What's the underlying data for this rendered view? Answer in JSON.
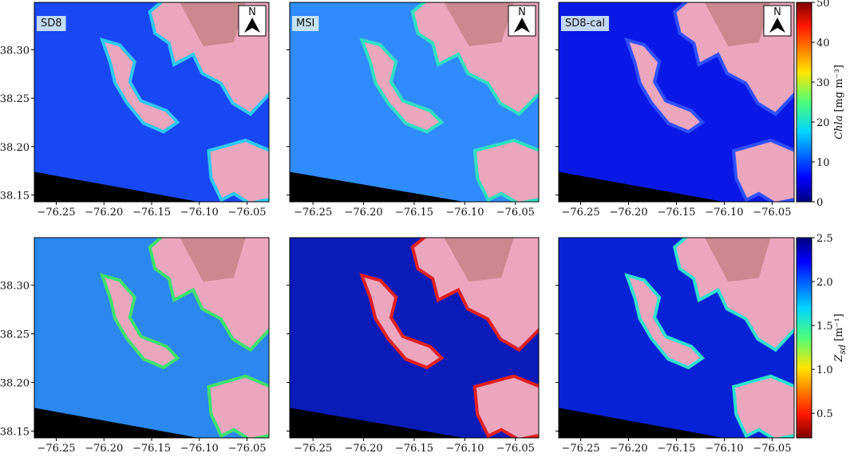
{
  "figure": {
    "xaxis": {
      "lim": [
        -76.273,
        -76.027
      ],
      "ticks": [
        {
          "value": -76.25,
          "label": "−76.25"
        },
        {
          "value": -76.2,
          "label": "−76.20"
        },
        {
          "value": -76.15,
          "label": "−76.15"
        },
        {
          "value": -76.1,
          "label": "−76.10"
        },
        {
          "value": -76.05,
          "label": "−76.05"
        }
      ]
    },
    "yaxis": {
      "lim": [
        38.143,
        38.349
      ],
      "ticks": [
        {
          "value": 38.15,
          "label": "38.15"
        },
        {
          "value": 38.2,
          "label": "38.20"
        },
        {
          "value": 38.25,
          "label": "38.25"
        },
        {
          "value": 38.3,
          "label": "38.30"
        }
      ]
    },
    "rows": [
      {
        "panels": [
          {
            "label": "SD8",
            "label_color": "#e8141c",
            "north": "N"
          },
          {
            "label": "MSI",
            "label_color": "#1f2fe0",
            "north": "N"
          },
          {
            "label": "SD8-cal",
            "label_color": "#f5a623",
            "north": "N"
          }
        ],
        "colorbar": {
          "label": {
            "symbol": "Chla",
            "unit": "[mg m⁻³]"
          },
          "lim": [
            0,
            50
          ],
          "ticks": [
            0,
            10,
            20,
            30,
            40,
            50
          ],
          "reversed": false
        }
      },
      {
        "colorbar": {
          "label": {
            "symbol": "Z",
            "subscript": "sd",
            "unit": "[m⁻¹]"
          },
          "lim": [
            0.22,
            2.5
          ],
          "ticks": [
            {
              "value": 0.5,
              "label": "0.5"
            },
            {
              "value": 1.0,
              "label": "1.0"
            },
            {
              "value": 1.5,
              "label": "1.5"
            },
            {
              "value": 2.0,
              "label": "2.0"
            },
            {
              "value": 2.5,
              "label": "2.5"
            }
          ],
          "reversed": true
        }
      }
    ]
  }
}
